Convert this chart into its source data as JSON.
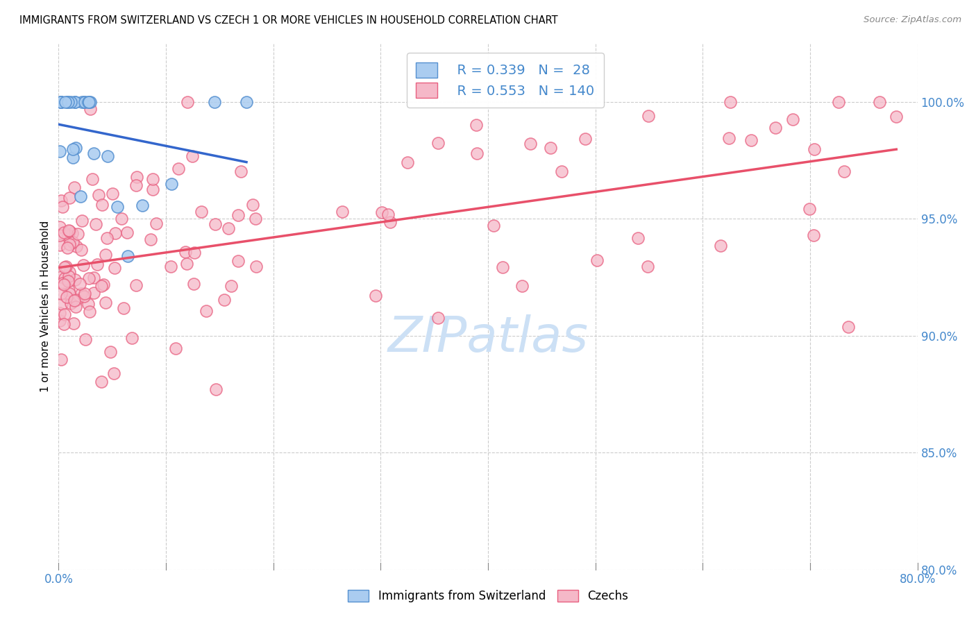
{
  "title": "IMMIGRANTS FROM SWITZERLAND VS CZECH 1 OR MORE VEHICLES IN HOUSEHOLD CORRELATION CHART",
  "source": "Source: ZipAtlas.com",
  "ylabel": "1 or more Vehicles in Household",
  "ytick_values": [
    80.0,
    85.0,
    90.0,
    95.0,
    100.0
  ],
  "legend_label1": "Immigrants from Switzerland",
  "legend_label2": "Czechs",
  "r1": 0.339,
  "n1": 28,
  "r2": 0.553,
  "n2": 140,
  "color_swiss": "#aaccf0",
  "color_czech": "#f5b8c8",
  "edge_color_swiss": "#5590d0",
  "edge_color_czech": "#e86080",
  "line_color_swiss": "#3366cc",
  "line_color_czech": "#e8506a",
  "xmin": 0.0,
  "xmax": 80.0,
  "ymin": 80.0,
  "ymax": 102.5,
  "xtick_positions": [
    0.0,
    10.0,
    20.0,
    30.0,
    40.0,
    50.0,
    60.0,
    70.0,
    80.0
  ],
  "watermark_text": "ZIPatlas",
  "watermark_color": "#cce0f5"
}
